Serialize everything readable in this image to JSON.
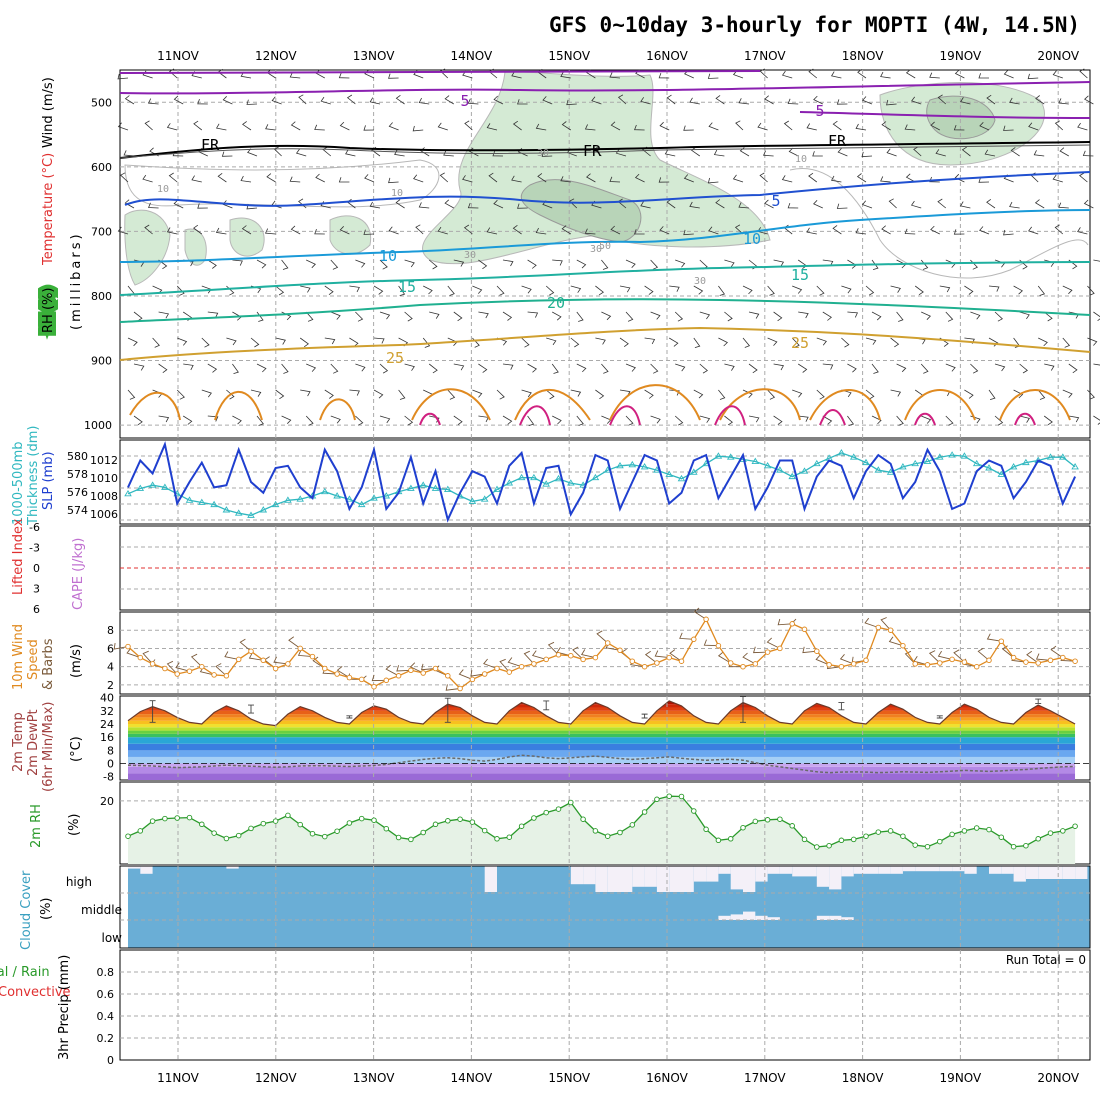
{
  "title": "GFS 0~10day 3-hourly for MOPTI (4W, 14.5N)",
  "date_labels": [
    "11NOV",
    "12NOV",
    "13NOV",
    "14NOV",
    "15NOV",
    "16NOV",
    "17NOV",
    "18NOV",
    "19NOV",
    "20NOV"
  ],
  "colors": {
    "slp": "#1f3fcf",
    "thickness": "#30b8c0",
    "wind": "#e08a20",
    "barb": "#7a5a3a",
    "rh": "#2a9a2a",
    "cloud": "#6aaed6",
    "clear": "#f4f0f8",
    "lifted": "#e03030"
  },
  "chart_data": [
    {
      "type": "line",
      "panel": "upper-air",
      "ylabels": [
        "Temperature (°C)",
        "Wind (m/s)",
        "RH (%)",
        "(millibars)"
      ],
      "yticks": [
        500,
        600,
        700,
        800,
        900,
        1000
      ],
      "ylim": [
        450,
        1020
      ],
      "isotherm_labels": [
        {
          "text": "5",
          "color": "#8a20b0"
        },
        {
          "text": "5",
          "color": "#8a20b0"
        },
        {
          "text": "FR",
          "color": "#000000"
        },
        {
          "text": "FR",
          "color": "#000000"
        },
        {
          "text": "FR",
          "color": "#000000"
        },
        {
          "text": "5",
          "color": "#2050d0"
        },
        {
          "text": "10",
          "color": "#1a9ad8"
        },
        {
          "text": "10",
          "color": "#1a9ad8"
        },
        {
          "text": "15",
          "color": "#20b0a0"
        },
        {
          "text": "15",
          "color": "#20b0a0"
        },
        {
          "text": "20",
          "color": "#20b090"
        },
        {
          "text": "25",
          "color": "#d0a030"
        },
        {
          "text": "25",
          "color": "#d0a030"
        }
      ],
      "rh_labels": [
        "10",
        "10",
        "10",
        "30",
        "30",
        "30",
        "30",
        "50"
      ]
    },
    {
      "type": "line",
      "panel": "slp-thickness",
      "ylabels": [
        "1000-500mb",
        "Thickness (dm)",
        "SLP (mb)"
      ],
      "left_ticks": [
        "580",
        "578",
        "576",
        "574"
      ],
      "right_ticks": [
        "1012",
        "1010",
        "1008",
        "1006"
      ],
      "series": [
        {
          "name": "SLP (mb)",
          "values": [
            1009.0,
            1011.5,
            1010.3,
            1013.0,
            1007.5,
            1009.5,
            1011.3,
            1009.0,
            1009.2,
            1012.5,
            1009.5,
            1008.5,
            1010.8,
            1011.0,
            1009.0,
            1008.0,
            1012.5,
            1010.5,
            1007.0,
            1009.0,
            1012.5,
            1007.0,
            1008.5,
            1011.8,
            1007.5,
            1010.5,
            1006.0,
            1008.5,
            1010.5,
            1010.0,
            1007.5,
            1011.0,
            1012.2,
            1007.5,
            1010.8,
            1011.0,
            1006.5,
            1008.5,
            1012.0,
            1011.5,
            1007.0,
            1009.5,
            1012.0,
            1011.5,
            1007.5,
            1008.5,
            1011.5,
            1012.0,
            1008.0,
            1010.0,
            1012.0,
            1007.0,
            1009.0,
            1011.5,
            1011.5,
            1007.0,
            1010.0,
            1011.5,
            1011.0,
            1008.0,
            1010.5,
            1012.0,
            1011.2,
            1008.0,
            1009.5,
            1012.5,
            1010.5,
            1007.0,
            1007.5,
            1010.5,
            1011.5,
            1011.0,
            1008.0,
            1009.5,
            1011.5,
            1011.0,
            1007.5,
            1010.0
          ]
        },
        {
          "name": "1000-500mb Thickness (dm)",
          "values": [
            576.0,
            576.5,
            576.8,
            576.6,
            576.0,
            575.4,
            575.2,
            575.0,
            574.5,
            574.2,
            574.0,
            574.5,
            575.0,
            575.4,
            575.5,
            575.8,
            576.2,
            575.8,
            575.5,
            575.0,
            575.6,
            575.8,
            576.2,
            576.5,
            576.8,
            576.5,
            576.4,
            575.8,
            575.3,
            575.5,
            576.4,
            577.0,
            577.5,
            577.5,
            576.9,
            577.4,
            577.0,
            576.8,
            577.5,
            578.2,
            578.6,
            578.7,
            578.5,
            578.2,
            577.8,
            577.4,
            578.0,
            578.8,
            579.5,
            579.4,
            579.2,
            579.0,
            578.6,
            578.2,
            577.6,
            578.1,
            578.8,
            579.3,
            579.8,
            579.4,
            578.9,
            578.2,
            578.0,
            578.5,
            578.8,
            579.0,
            579.4,
            579.6,
            579.5,
            578.8,
            578.4,
            577.8,
            578.5,
            578.9,
            579.1,
            579.4,
            579.4,
            578.5
          ]
        }
      ]
    },
    {
      "type": "line",
      "panel": "lifted-cape",
      "ylabels": [
        "Lifted Index",
        "CAPE (J/kg)"
      ],
      "left_ticks": [
        "-6",
        "-3",
        "0",
        "3",
        "6"
      ],
      "series": [
        {
          "name": "Lifted Index",
          "values": [
            0
          ]
        }
      ]
    },
    {
      "type": "line",
      "panel": "wind10m",
      "ylabels": [
        "10m Wind",
        "Speed",
        "& Barbs",
        "(m/s)"
      ],
      "yticks": [
        2,
        4,
        6,
        8
      ],
      "ylim": [
        1,
        10
      ],
      "series": [
        {
          "name": "Speed",
          "values": [
            6.2,
            5.0,
            4.3,
            3.8,
            3.2,
            3.5,
            4.0,
            3.1,
            3.0,
            4.8,
            5.7,
            4.7,
            3.8,
            4.3,
            6.0,
            5.1,
            3.8,
            3.2,
            2.8,
            2.6,
            1.8,
            2.5,
            3.0,
            3.6,
            3.3,
            3.8,
            3.0,
            1.6,
            2.6,
            3.2,
            3.8,
            3.4,
            4.0,
            4.3,
            4.8,
            5.3,
            5.2,
            4.8,
            5.0,
            6.6,
            5.8,
            4.6,
            4.0,
            4.4,
            5.0,
            4.6,
            7.0,
            9.2,
            6.3,
            4.4,
            4.0,
            4.3,
            5.6,
            6.0,
            8.7,
            8.1,
            5.7,
            4.2,
            4.0,
            4.3,
            4.7,
            8.3,
            8.0,
            6.3,
            4.3,
            4.2,
            4.4,
            4.8,
            4.5,
            4.0,
            4.7,
            6.8,
            5.0,
            4.5,
            4.4,
            4.7,
            5.0,
            4.6
          ]
        }
      ]
    },
    {
      "type": "area",
      "panel": "temperature2m",
      "ylabels": [
        "2m Temp",
        "2m DewPt",
        "(6hr Min/Max)",
        "(°C)"
      ],
      "yticks": [
        -8,
        0,
        8,
        16,
        24,
        32,
        40
      ],
      "ylim": [
        -10,
        41
      ],
      "series": [
        {
          "name": "2m Temp",
          "values": [
            26,
            31.5,
            34.5,
            32,
            28,
            25,
            24,
            31,
            35,
            32,
            27,
            24,
            23,
            30,
            34.5,
            32,
            28,
            25,
            24,
            31,
            35,
            33,
            28,
            25,
            24,
            31,
            36,
            34,
            29,
            25,
            24,
            32,
            37,
            34,
            29,
            25,
            24,
            32,
            37,
            34,
            29,
            25,
            24,
            32,
            38,
            35,
            29,
            25,
            24,
            32,
            37,
            34,
            29,
            25,
            24,
            32,
            36.5,
            34,
            29,
            25,
            24,
            31,
            36,
            33,
            28,
            25,
            24,
            31,
            36,
            33,
            28,
            25,
            24,
            31,
            35.5,
            32,
            28,
            24
          ]
        },
        {
          "name": "2m DewPt",
          "values": [
            -1,
            -1.2,
            -1.5,
            -2,
            -2.5,
            -2.3,
            -2,
            -1.5,
            -1,
            -1.3,
            -1.6,
            -2,
            -2.2,
            -2,
            -1.5,
            -1.3,
            -1.4,
            -1.6,
            -1.8,
            -1.5,
            -1.2,
            -0.5,
            0.5,
            1.5,
            2.5,
            3.2,
            3.5,
            3,
            2,
            1.5,
            2.5,
            4,
            5,
            4.5,
            3.5,
            3,
            3.5,
            4,
            4.5,
            3.8,
            3,
            2.5,
            3,
            3.5,
            4,
            3.2,
            2.5,
            2,
            2.3,
            2.6,
            2,
            0.5,
            -1,
            -2,
            -3,
            -4,
            -5,
            -5.5,
            -5.2,
            -5,
            -5.2,
            -5.5,
            -5.3,
            -5,
            -5.2,
            -5.4,
            -5,
            -4.6,
            -4.2,
            -4.5,
            -4.8,
            -4.5,
            -4,
            -3.6,
            -3,
            -2.5,
            -2,
            -1.8
          ]
        }
      ]
    },
    {
      "type": "line",
      "panel": "rh2m",
      "ylabels": [
        "2m RH",
        "(%)"
      ],
      "yticks": [
        20
      ],
      "ylim": [
        0,
        26
      ],
      "series": [
        {
          "name": "2m RH",
          "values": [
            8.8,
            10.5,
            13.6,
            14.4,
            14.6,
            14.7,
            12.6,
            9.8,
            8.1,
            9.0,
            11.3,
            12.8,
            13.6,
            15.4,
            12.5,
            9.6,
            8.7,
            10.4,
            13.0,
            14.4,
            13.9,
            11.2,
            8.4,
            7.8,
            10.0,
            12.6,
            13.7,
            14.2,
            13.3,
            10.6,
            8.0,
            8.5,
            12.0,
            14.6,
            16.3,
            17.4,
            19.5,
            14.2,
            10.5,
            8.8,
            10.0,
            12.4,
            16.5,
            20.5,
            21.5,
            21.4,
            16.8,
            11.0,
            7.5,
            8.0,
            11.5,
            13.5,
            14.0,
            14.2,
            12.1,
            7.8,
            5.4,
            5.8,
            7.5,
            7.8,
            8.8,
            10.1,
            10.5,
            8.8,
            6.0,
            5.5,
            7.1,
            9.4,
            10.5,
            11.4,
            10.9,
            8.5,
            5.5,
            5.8,
            8.0,
            9.8,
            10.5,
            12.0
          ]
        }
      ]
    },
    {
      "type": "bar",
      "panel": "cloud-cover",
      "ylabels": [
        "Cloud Cover",
        "(%)"
      ],
      "levels": [
        "high",
        "middle",
        "low"
      ],
      "high_clear_fraction": [
        0.1,
        0.3,
        0,
        0,
        0,
        0,
        0,
        0,
        0.1,
        0,
        0,
        0,
        0,
        0,
        0,
        0,
        0,
        0,
        0,
        0,
        0,
        0,
        0,
        0,
        0,
        0,
        0,
        0,
        0,
        1,
        0,
        0,
        0,
        0,
        0,
        0,
        0.7,
        0.7,
        1,
        1,
        1,
        0.8,
        0.8,
        1,
        1,
        1,
        0.6,
        0.6,
        0.3,
        0.9,
        1,
        0.6,
        0.3,
        0.3,
        0.4,
        0.4,
        0.8,
        0.9,
        0.4,
        0.3,
        0.3,
        0.3,
        0.3,
        0.2,
        0.2,
        0.2,
        0.2,
        0.2,
        0.3,
        0,
        0.3,
        0.3,
        0.6,
        0.5,
        0.5,
        0.5,
        0.5,
        0.5
      ],
      "middle_clear_fraction": [
        0,
        0,
        0,
        0,
        0,
        0,
        0,
        0,
        0,
        0,
        0,
        0,
        0,
        0,
        0,
        0,
        0,
        0,
        0,
        0,
        0,
        0,
        0,
        0,
        0,
        0,
        0,
        0,
        0,
        0,
        0,
        0,
        0,
        0,
        0,
        0,
        0,
        0,
        0,
        0,
        0,
        0,
        0,
        0,
        0,
        0,
        0,
        0,
        0.3,
        0.4,
        0.6,
        0.3,
        0.2,
        0,
        0,
        0,
        0.3,
        0.3,
        0.2,
        0,
        0,
        0,
        0,
        0,
        0,
        0,
        0,
        0,
        0,
        0,
        0,
        0,
        0,
        0,
        0,
        0,
        0,
        0
      ]
    },
    {
      "type": "bar",
      "panel": "precip",
      "ylabels": [
        "Total / Rain",
        "Convective",
        "3hr Precip (mm)"
      ],
      "yticks": [
        0,
        0.2,
        0.4,
        0.6,
        0.8
      ],
      "ylim": [
        0,
        1
      ],
      "annotation": "Run Total = 0",
      "series": [
        {
          "name": "Total / Rain",
          "values": []
        }
      ]
    }
  ]
}
